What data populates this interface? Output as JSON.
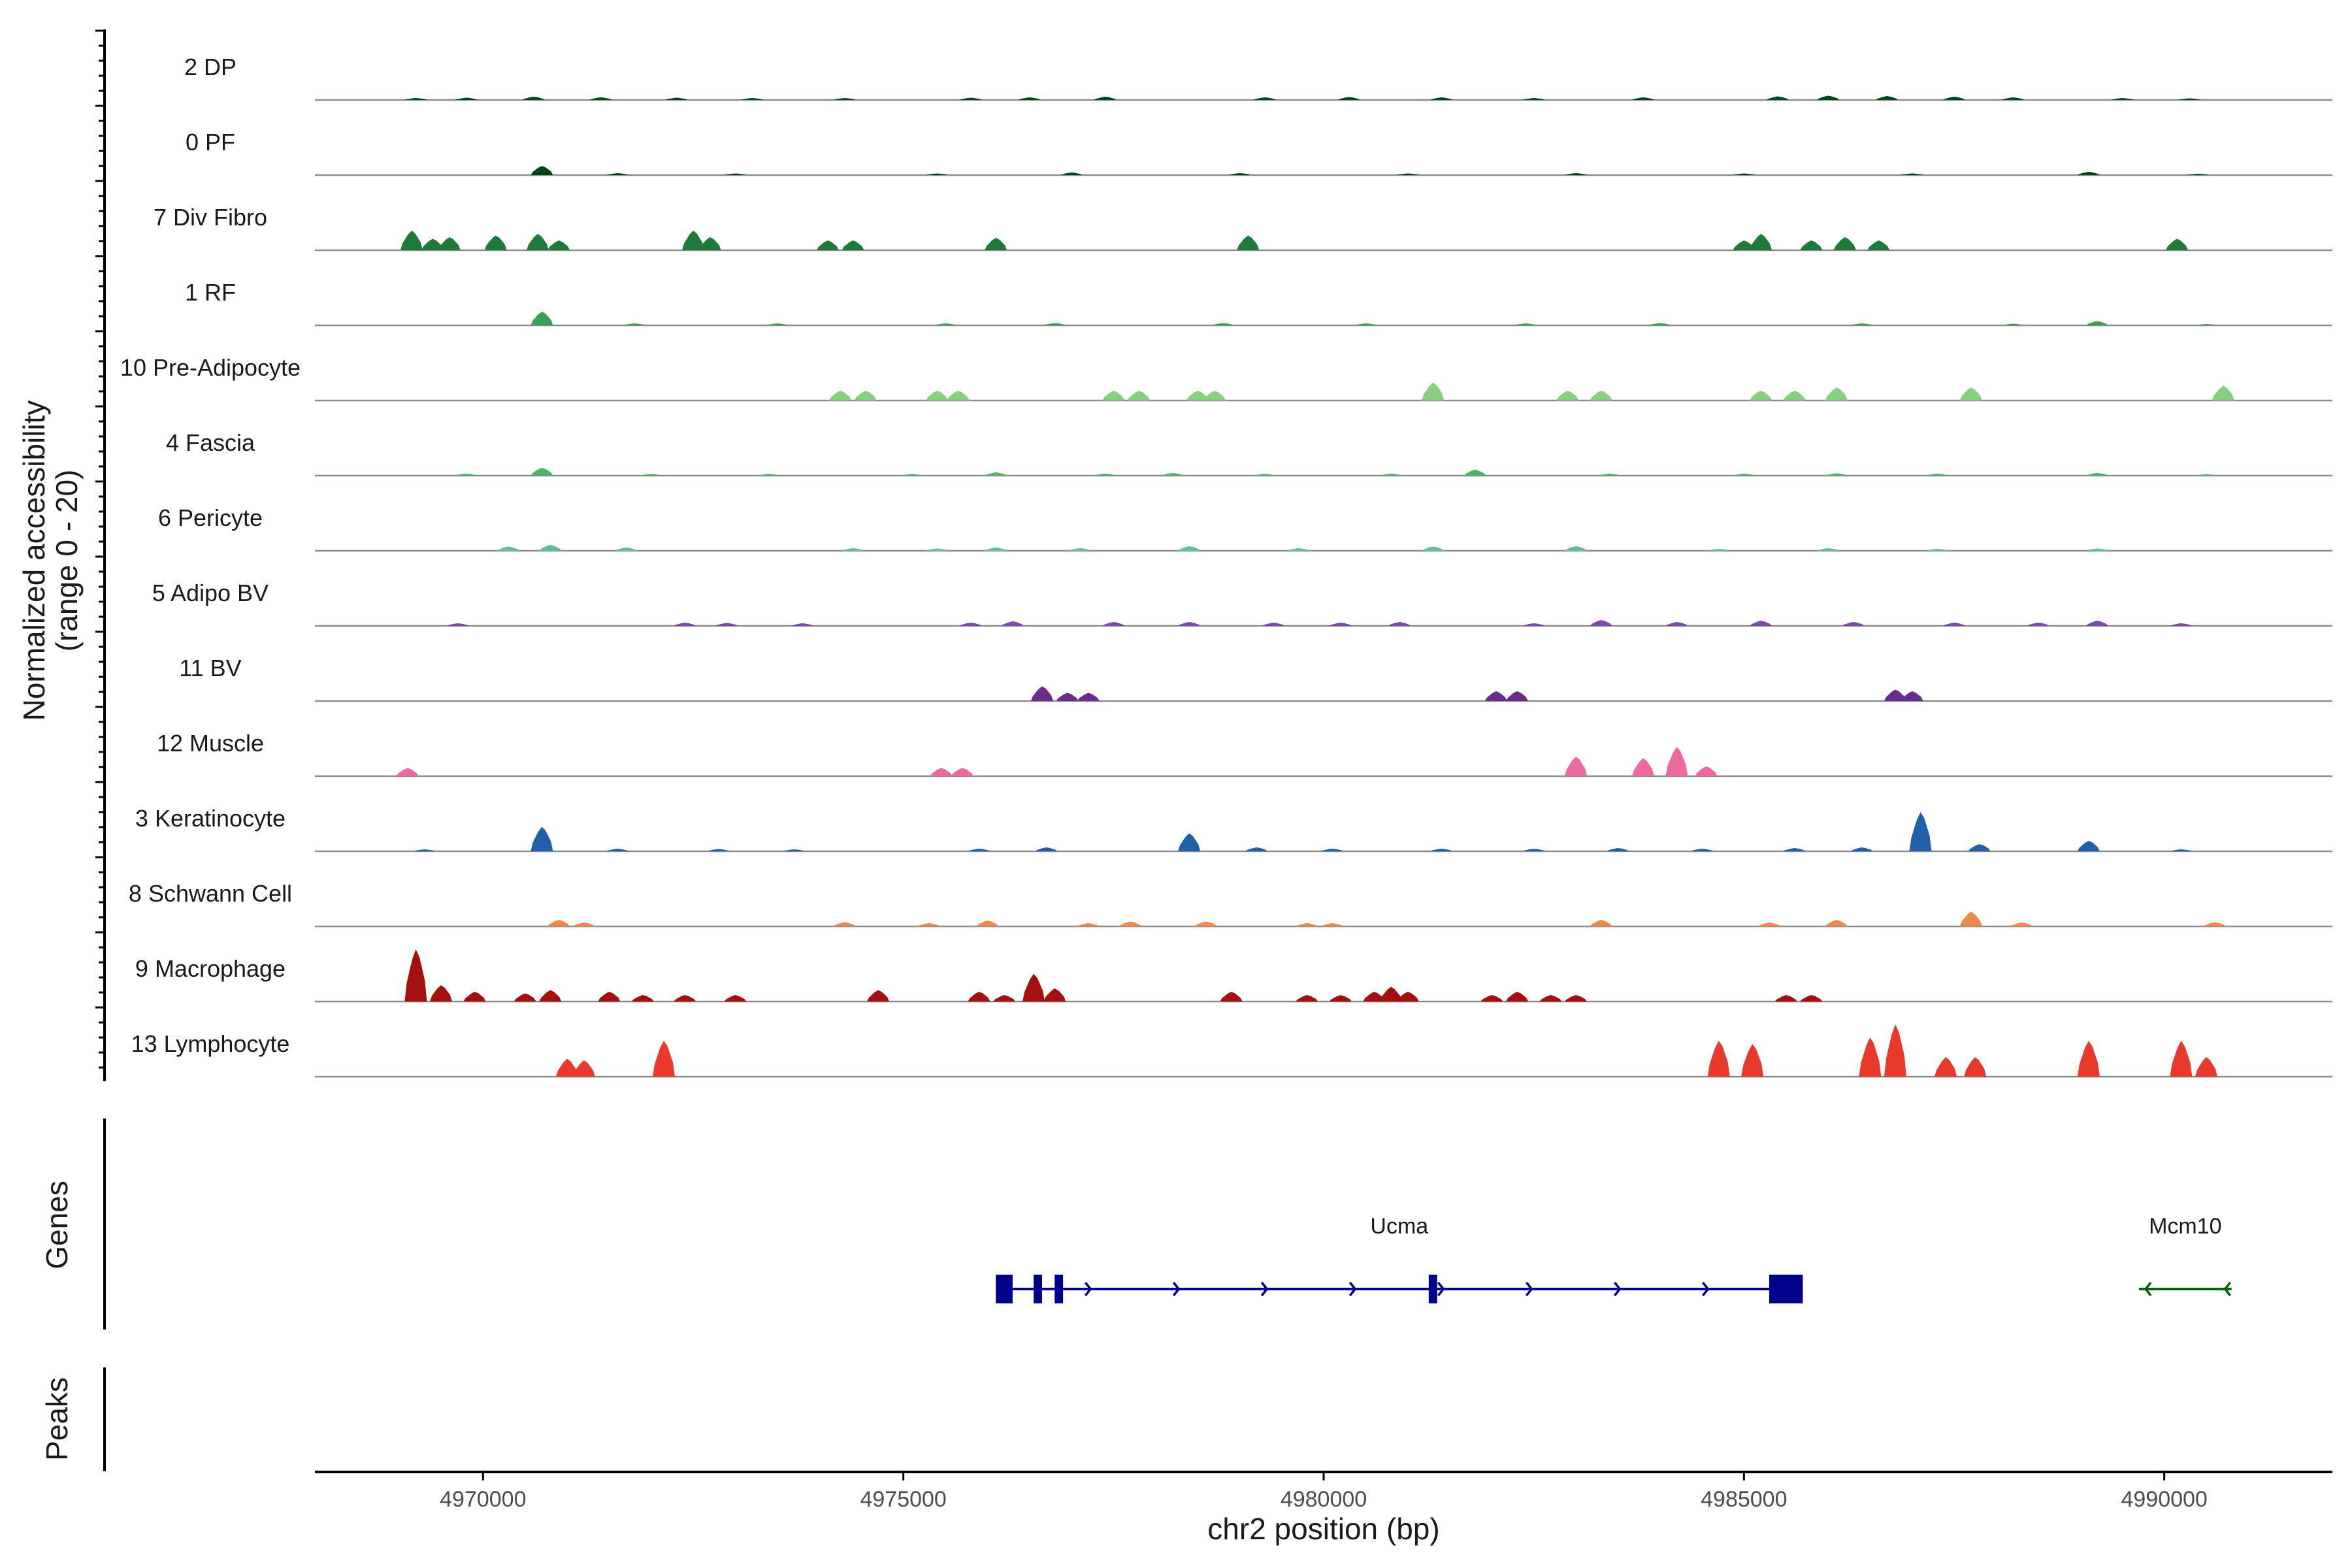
{
  "chart_data": {
    "type": "coverage-track",
    "chromosome": "chr2",
    "xlim": [
      4968000,
      4992000
    ],
    "ylim": [
      0,
      20
    ],
    "ylabel_line1": "Normalized accessibility",
    "ylabel_line2": "(range 0 - 20)",
    "xlabel": "chr2 position (bp)",
    "xticks": [
      4970000,
      4975000,
      4980000,
      4985000,
      4990000
    ],
    "xtick_labels": [
      "4970000",
      "4975000",
      "4980000",
      "4985000",
      "4990000"
    ],
    "genes_label": "Genes",
    "peaks_label": "Peaks",
    "tracks": [
      {
        "name": "2 DP",
        "color": "#00441b",
        "peaks": [
          [
            4969200,
            0.6
          ],
          [
            4969800,
            0.7
          ],
          [
            4970600,
            1.0
          ],
          [
            4971400,
            0.8
          ],
          [
            4972300,
            0.7
          ],
          [
            4973200,
            0.6
          ],
          [
            4974300,
            0.6
          ],
          [
            4975800,
            0.7
          ],
          [
            4976500,
            0.8
          ],
          [
            4977400,
            1.0
          ],
          [
            4979300,
            0.8
          ],
          [
            4980300,
            0.9
          ],
          [
            4981400,
            0.8
          ],
          [
            4982500,
            0.6
          ],
          [
            4983800,
            0.8
          ],
          [
            4985400,
            1.1
          ],
          [
            4986000,
            1.3
          ],
          [
            4986700,
            1.2
          ],
          [
            4987500,
            1.0
          ],
          [
            4988200,
            0.8
          ],
          [
            4989500,
            0.6
          ],
          [
            4990300,
            0.5
          ]
        ]
      },
      {
        "name": "0 PF",
        "color": "#00441b",
        "peaks": [
          [
            4970700,
            2.8
          ],
          [
            4971600,
            0.6
          ],
          [
            4973000,
            0.5
          ],
          [
            4975400,
            0.5
          ],
          [
            4977000,
            0.8
          ],
          [
            4979000,
            0.6
          ],
          [
            4981000,
            0.5
          ],
          [
            4983000,
            0.6
          ],
          [
            4985000,
            0.5
          ],
          [
            4987000,
            0.5
          ],
          [
            4989100,
            1.0
          ],
          [
            4990400,
            0.4
          ]
        ]
      },
      {
        "name": "7 Div Fibro",
        "color": "#1f7a3a",
        "peaks": [
          [
            4969150,
            6.0
          ],
          [
            4969400,
            3.5
          ],
          [
            4969600,
            4.0
          ],
          [
            4970150,
            4.5
          ],
          [
            4970650,
            5.0
          ],
          [
            4970900,
            3.0
          ],
          [
            4972500,
            6.0
          ],
          [
            4972700,
            4.0
          ],
          [
            4974100,
            3.0
          ],
          [
            4974400,
            3.0
          ],
          [
            4976100,
            3.8
          ],
          [
            4979100,
            4.5
          ],
          [
            4985000,
            3.0
          ],
          [
            4985200,
            5.0
          ],
          [
            4985800,
            3.0
          ],
          [
            4986200,
            4.0
          ],
          [
            4986600,
            3.0
          ],
          [
            4990150,
            3.5
          ]
        ]
      },
      {
        "name": "1 RF",
        "color": "#3d9e55",
        "peaks": [
          [
            4970700,
            4.2
          ],
          [
            4971800,
            0.6
          ],
          [
            4973500,
            0.6
          ],
          [
            4975500,
            0.6
          ],
          [
            4976800,
            0.7
          ],
          [
            4978800,
            0.7
          ],
          [
            4980500,
            0.6
          ],
          [
            4982400,
            0.6
          ],
          [
            4984000,
            0.7
          ],
          [
            4986400,
            0.6
          ],
          [
            4988200,
            0.5
          ],
          [
            4989200,
            1.3
          ],
          [
            4990500,
            0.4
          ]
        ]
      },
      {
        "name": "10 Pre-Adipocyte",
        "color": "#88d07f",
        "peaks": [
          [
            4974250,
            3.0
          ],
          [
            4974550,
            3.0
          ],
          [
            4975400,
            3.0
          ],
          [
            4975650,
            3.0
          ],
          [
            4977500,
            3.0
          ],
          [
            4977800,
            3.0
          ],
          [
            4978500,
            3.0
          ],
          [
            4978700,
            3.0
          ],
          [
            4981300,
            5.5
          ],
          [
            4982900,
            3.0
          ],
          [
            4983300,
            3.0
          ],
          [
            4985200,
            3.0
          ],
          [
            4985600,
            3.0
          ],
          [
            4986100,
            4.0
          ],
          [
            4987700,
            4.0
          ],
          [
            4990700,
            4.5
          ]
        ]
      },
      {
        "name": "4 Fascia",
        "color": "#52b263",
        "peaks": [
          [
            4969800,
            0.6
          ],
          [
            4970700,
            2.4
          ],
          [
            4972000,
            0.5
          ],
          [
            4973400,
            0.5
          ],
          [
            4975100,
            0.5
          ],
          [
            4976100,
            1.0
          ],
          [
            4977400,
            0.6
          ],
          [
            4978200,
            0.8
          ],
          [
            4979300,
            0.5
          ],
          [
            4980800,
            0.6
          ],
          [
            4981800,
            1.8
          ],
          [
            4983400,
            0.6
          ],
          [
            4985000,
            0.6
          ],
          [
            4986100,
            0.7
          ],
          [
            4987300,
            0.6
          ],
          [
            4989200,
            0.8
          ],
          [
            4990500,
            0.4
          ]
        ]
      },
      {
        "name": "6 Pericyte",
        "color": "#5fbf99",
        "peaks": [
          [
            4970300,
            1.3
          ],
          [
            4970800,
            1.8
          ],
          [
            4971700,
            1.0
          ],
          [
            4974400,
            0.8
          ],
          [
            4975400,
            0.7
          ],
          [
            4976100,
            1.0
          ],
          [
            4977100,
            0.8
          ],
          [
            4978400,
            1.4
          ],
          [
            4979700,
            0.8
          ],
          [
            4981300,
            1.3
          ],
          [
            4983000,
            1.4
          ],
          [
            4984700,
            0.6
          ],
          [
            4986000,
            0.8
          ],
          [
            4987300,
            0.6
          ],
          [
            4989200,
            0.7
          ]
        ]
      },
      {
        "name": "5 Adipo BV",
        "color": "#7b4aa6",
        "peaks": [
          [
            4969700,
            0.8
          ],
          [
            4972400,
            1.0
          ],
          [
            4972900,
            0.9
          ],
          [
            4973800,
            0.8
          ],
          [
            4975800,
            1.0
          ],
          [
            4976300,
            1.4
          ],
          [
            4977500,
            1.2
          ],
          [
            4978400,
            1.2
          ],
          [
            4979400,
            1.0
          ],
          [
            4980200,
            1.0
          ],
          [
            4980900,
            1.2
          ],
          [
            4982500,
            0.8
          ],
          [
            4983300,
            1.8
          ],
          [
            4984200,
            1.2
          ],
          [
            4985200,
            1.6
          ],
          [
            4986300,
            1.2
          ],
          [
            4987500,
            1.0
          ],
          [
            4988500,
            1.0
          ],
          [
            4989200,
            1.6
          ],
          [
            4990200,
            0.8
          ]
        ]
      },
      {
        "name": "11 BV",
        "color": "#6a2c8a",
        "peaks": [
          [
            4976650,
            4.5
          ],
          [
            4976950,
            2.5
          ],
          [
            4977200,
            2.5
          ],
          [
            4982050,
            3.0
          ],
          [
            4982300,
            3.0
          ],
          [
            4986800,
            3.5
          ],
          [
            4987000,
            3.0
          ]
        ]
      },
      {
        "name": "12 Muscle",
        "color": "#ee6a9e",
        "peaks": [
          [
            4969100,
            2.5
          ],
          [
            4975450,
            2.5
          ],
          [
            4975700,
            2.5
          ],
          [
            4983000,
            6.0
          ],
          [
            4983800,
            5.5
          ],
          [
            4984200,
            9.0
          ],
          [
            4984550,
            3.0
          ]
        ]
      },
      {
        "name": "3 Keratinocyte",
        "color": "#2060a8",
        "peaks": [
          [
            4969300,
            0.6
          ],
          [
            4970700,
            7.5
          ],
          [
            4971600,
            0.8
          ],
          [
            4972800,
            0.7
          ],
          [
            4973700,
            0.6
          ],
          [
            4975900,
            0.8
          ],
          [
            4976700,
            1.2
          ],
          [
            4978400,
            5.5
          ],
          [
            4979200,
            1.2
          ],
          [
            4980100,
            0.8
          ],
          [
            4981400,
            0.8
          ],
          [
            4982500,
            0.8
          ],
          [
            4983500,
            1.0
          ],
          [
            4984500,
            0.8
          ],
          [
            4985600,
            1.0
          ],
          [
            4986400,
            1.2
          ],
          [
            4987100,
            12.0
          ],
          [
            4987800,
            2.2
          ],
          [
            4989100,
            3.2
          ],
          [
            4990200,
            0.6
          ]
        ]
      },
      {
        "name": "8 Schwann Cell",
        "color": "#f08a4b",
        "peaks": [
          [
            4970900,
            2.0
          ],
          [
            4971200,
            1.2
          ],
          [
            4974300,
            1.3
          ],
          [
            4975300,
            1.0
          ],
          [
            4976000,
            1.8
          ],
          [
            4977200,
            1.0
          ],
          [
            4977700,
            1.5
          ],
          [
            4978600,
            1.5
          ],
          [
            4979800,
            1.0
          ],
          [
            4980100,
            1.0
          ],
          [
            4983300,
            2.0
          ],
          [
            4985300,
            1.2
          ],
          [
            4986100,
            2.0
          ],
          [
            4987700,
            4.5
          ],
          [
            4988300,
            1.2
          ],
          [
            4990600,
            1.3
          ]
        ]
      },
      {
        "name": "9 Macrophage",
        "color": "#a31010",
        "peaks": [
          [
            4969200,
            16.0
          ],
          [
            4969500,
            5.0
          ],
          [
            4969900,
            3.0
          ],
          [
            4970500,
            2.5
          ],
          [
            4970800,
            3.5
          ],
          [
            4971500,
            3.0
          ],
          [
            4971900,
            2.0
          ],
          [
            4972400,
            2.0
          ],
          [
            4973000,
            2.0
          ],
          [
            4974700,
            3.5
          ],
          [
            4975900,
            3.0
          ],
          [
            4976200,
            2.0
          ],
          [
            4976550,
            8.5
          ],
          [
            4976800,
            4.0
          ],
          [
            4978900,
            3.0
          ],
          [
            4979800,
            2.0
          ],
          [
            4980200,
            2.0
          ],
          [
            4980600,
            3.0
          ],
          [
            4980800,
            4.5
          ],
          [
            4981000,
            3.0
          ],
          [
            4982000,
            2.0
          ],
          [
            4982300,
            3.0
          ],
          [
            4982700,
            2.0
          ],
          [
            4983000,
            2.0
          ],
          [
            4985500,
            2.0
          ],
          [
            4985800,
            2.0
          ]
        ]
      },
      {
        "name": "13 Lymphocyte",
        "color": "#e8392c",
        "peaks": [
          [
            4971000,
            5.5
          ],
          [
            4971200,
            5.0
          ],
          [
            4972150,
            11.0
          ],
          [
            4984700,
            11.0
          ],
          [
            4985100,
            10.0
          ],
          [
            4986500,
            12.0
          ],
          [
            4986800,
            16.0
          ],
          [
            4987400,
            6.0
          ],
          [
            4987750,
            6.0
          ],
          [
            4989100,
            11.0
          ],
          [
            4990200,
            11.0
          ],
          [
            4990500,
            6.0
          ]
        ]
      }
    ],
    "genes": [
      {
        "name": "Ucma",
        "strand": "+",
        "start": 4976100,
        "end": 4985700,
        "color": "#00008b",
        "exons": [
          [
            4976100,
            4976300
          ],
          [
            4976550,
            4976650
          ],
          [
            4976800,
            4976900
          ],
          [
            4981250,
            4981350
          ],
          [
            4985300,
            4985700
          ]
        ]
      },
      {
        "name": "Mcm10",
        "strand": "-",
        "start": 4989700,
        "end": 4990800,
        "color": "#006400",
        "exons": []
      }
    ]
  }
}
